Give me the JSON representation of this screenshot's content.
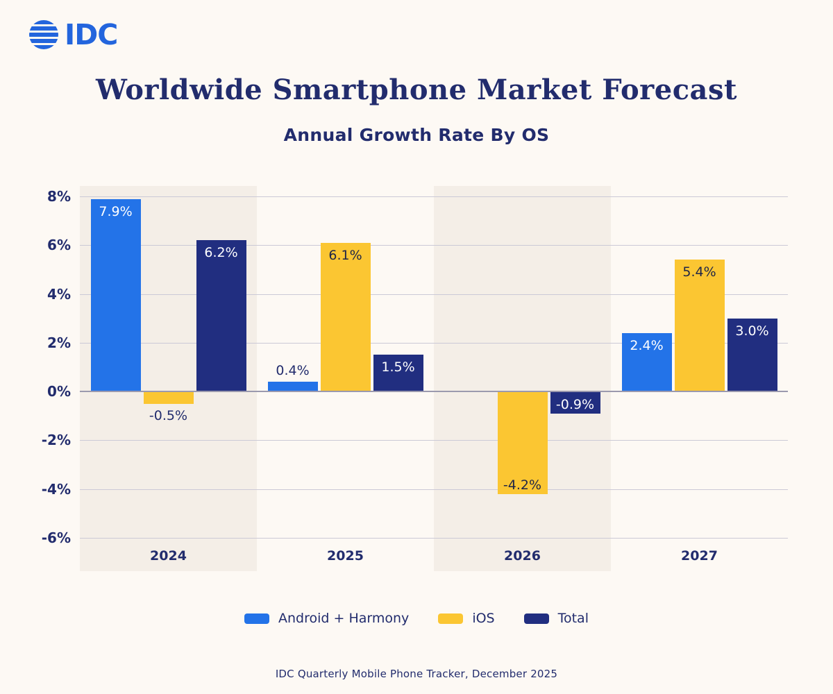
{
  "logo": {
    "text": "IDC",
    "color": "#2365dd"
  },
  "chart_data": {
    "type": "bar",
    "title": "Worldwide Smartphone Market Forecast",
    "subtitle": "Annual Growth Rate By OS",
    "source": "IDC Quarterly Mobile Phone Tracker, December 2025",
    "categories": [
      "2024",
      "2025",
      "2026",
      "2027"
    ],
    "series": [
      {
        "name": "Android + Harmony",
        "color": "#2373e8",
        "inside_label_color": "#ffffff",
        "values": [
          7.9,
          0.4,
          null,
          2.4
        ],
        "labels": [
          "7.9%",
          "0.4%",
          null,
          "2.4%"
        ]
      },
      {
        "name": "iOS",
        "color": "#fbc632",
        "inside_label_color": "#1f2547",
        "values": [
          -0.5,
          6.1,
          -4.2,
          5.4
        ],
        "labels": [
          "-0.5%",
          "6.1%",
          "-4.2%",
          "5.4%"
        ]
      },
      {
        "name": "Total",
        "color": "#212e80",
        "inside_label_color": "#ffffff",
        "values": [
          6.2,
          1.5,
          -0.9,
          3.0
        ],
        "labels": [
          "6.2%",
          "1.5%",
          "-0.9%",
          "3.0%"
        ]
      }
    ],
    "ylim": [
      -6,
      8
    ],
    "ytick_step": 2,
    "yticks": [
      {
        "value": 8,
        "label": "8%"
      },
      {
        "value": 6,
        "label": "6%"
      },
      {
        "value": 4,
        "label": "4%"
      },
      {
        "value": 2,
        "label": "2%"
      },
      {
        "value": 0,
        "label": "0%"
      },
      {
        "value": -2,
        "label": "-2%"
      },
      {
        "value": -4,
        "label": "-4%"
      },
      {
        "value": -6,
        "label": "-6%"
      }
    ],
    "grid": true,
    "legend_position": "bottom",
    "highlighted_category_bands": [
      0,
      2
    ],
    "colors": {
      "background": "#fdf9f4",
      "band": "#f4eee7",
      "grid": "#cbc9d6",
      "zero_line": "#9b99ae",
      "text": "#222c6d"
    }
  }
}
